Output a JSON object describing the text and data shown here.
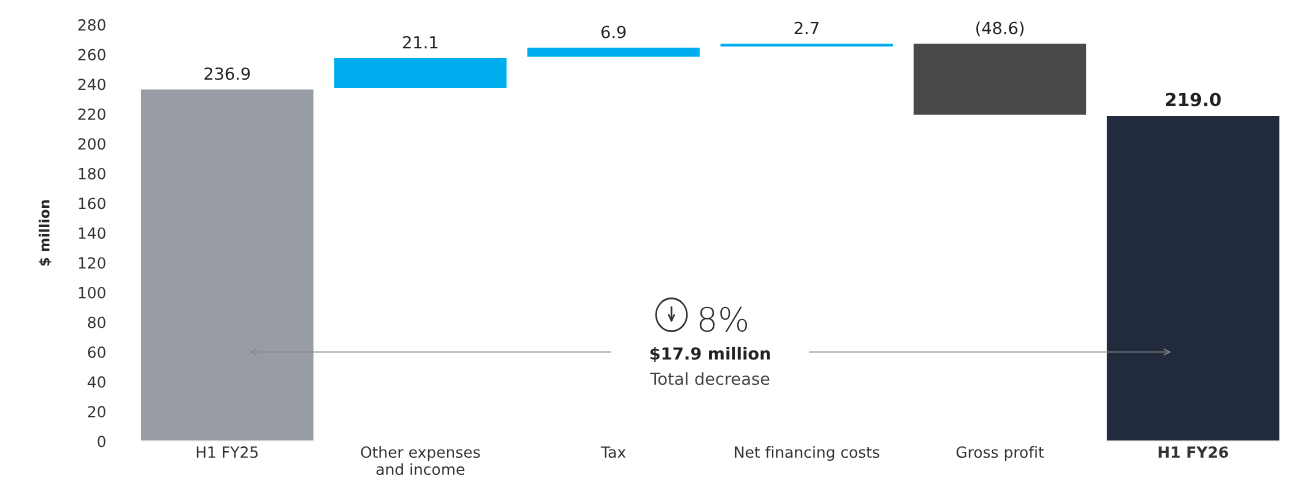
{
  "chart_data": {
    "type": "bar",
    "categories": [
      "H1 FY25",
      "Other expenses\nand income",
      "Tax",
      "Net financing costs",
      "Gross profit",
      "H1 FY26"
    ],
    "values": [
      236.9,
      21.1,
      6.9,
      2.7,
      -48.6,
      219.0
    ],
    "base": [
      0,
      236.9,
      258.0,
      264.9,
      267.6,
      0
    ],
    "colors": [
      "#989ca5",
      "#00aeef",
      "#00aeef",
      "#00aeef",
      "#48494b",
      "#222a3d"
    ],
    "value_labels": [
      "236.9",
      "21.1",
      "6.9",
      "2.7",
      "(48.6)",
      "219.0"
    ],
    "ylabel": "$ million",
    "ylim": [
      0,
      280
    ],
    "yticks": [
      0,
      20,
      40,
      60,
      80,
      100,
      120,
      140,
      160,
      180,
      200,
      220,
      240,
      260,
      280
    ],
    "annotations": [
      "8%",
      "$17.9 million",
      "Total decrease"
    ],
    "grid": false
  }
}
